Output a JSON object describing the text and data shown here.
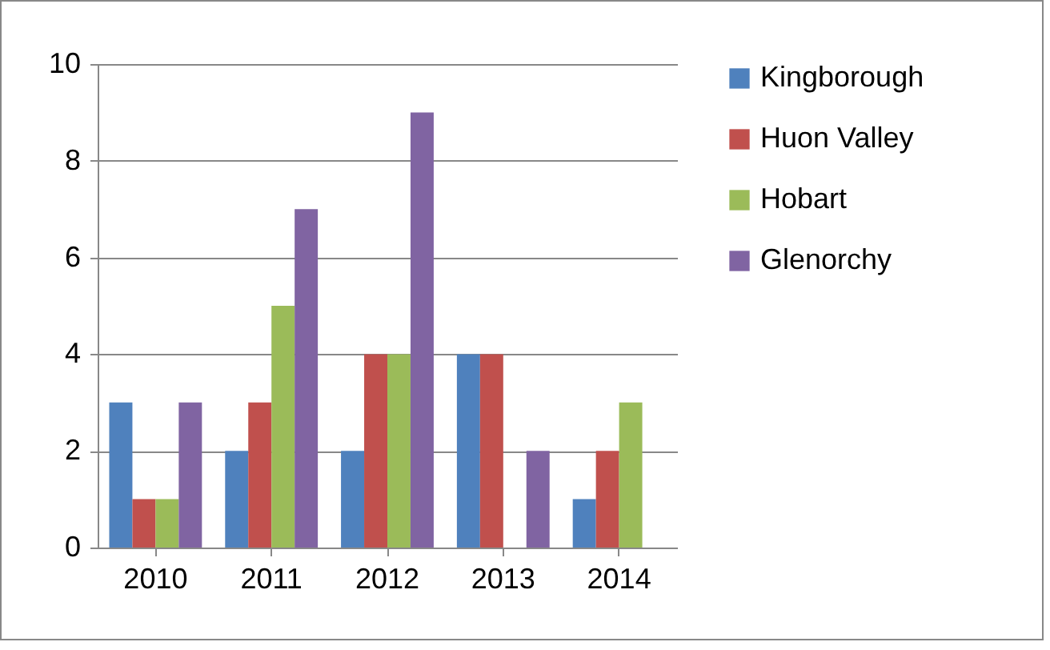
{
  "chart_data": {
    "type": "bar",
    "categories": [
      "2010",
      "2011",
      "2012",
      "2013",
      "2014"
    ],
    "series": [
      {
        "name": "Kingborough",
        "color": "#4f81bd",
        "values": [
          3,
          2,
          2,
          4,
          1
        ]
      },
      {
        "name": "Huon Valley",
        "color": "#c0504d",
        "values": [
          1,
          3,
          4,
          4,
          2
        ]
      },
      {
        "name": "Hobart",
        "color": "#9bbb59",
        "values": [
          1,
          5,
          4,
          0,
          3
        ]
      },
      {
        "name": "Glenorchy",
        "color": "#8064a2",
        "values": [
          3,
          7,
          9,
          2,
          0
        ]
      }
    ],
    "ylim": [
      0,
      10
    ],
    "yticks": [
      0,
      2,
      4,
      6,
      8,
      10
    ],
    "grid": "y",
    "legend": "right"
  }
}
